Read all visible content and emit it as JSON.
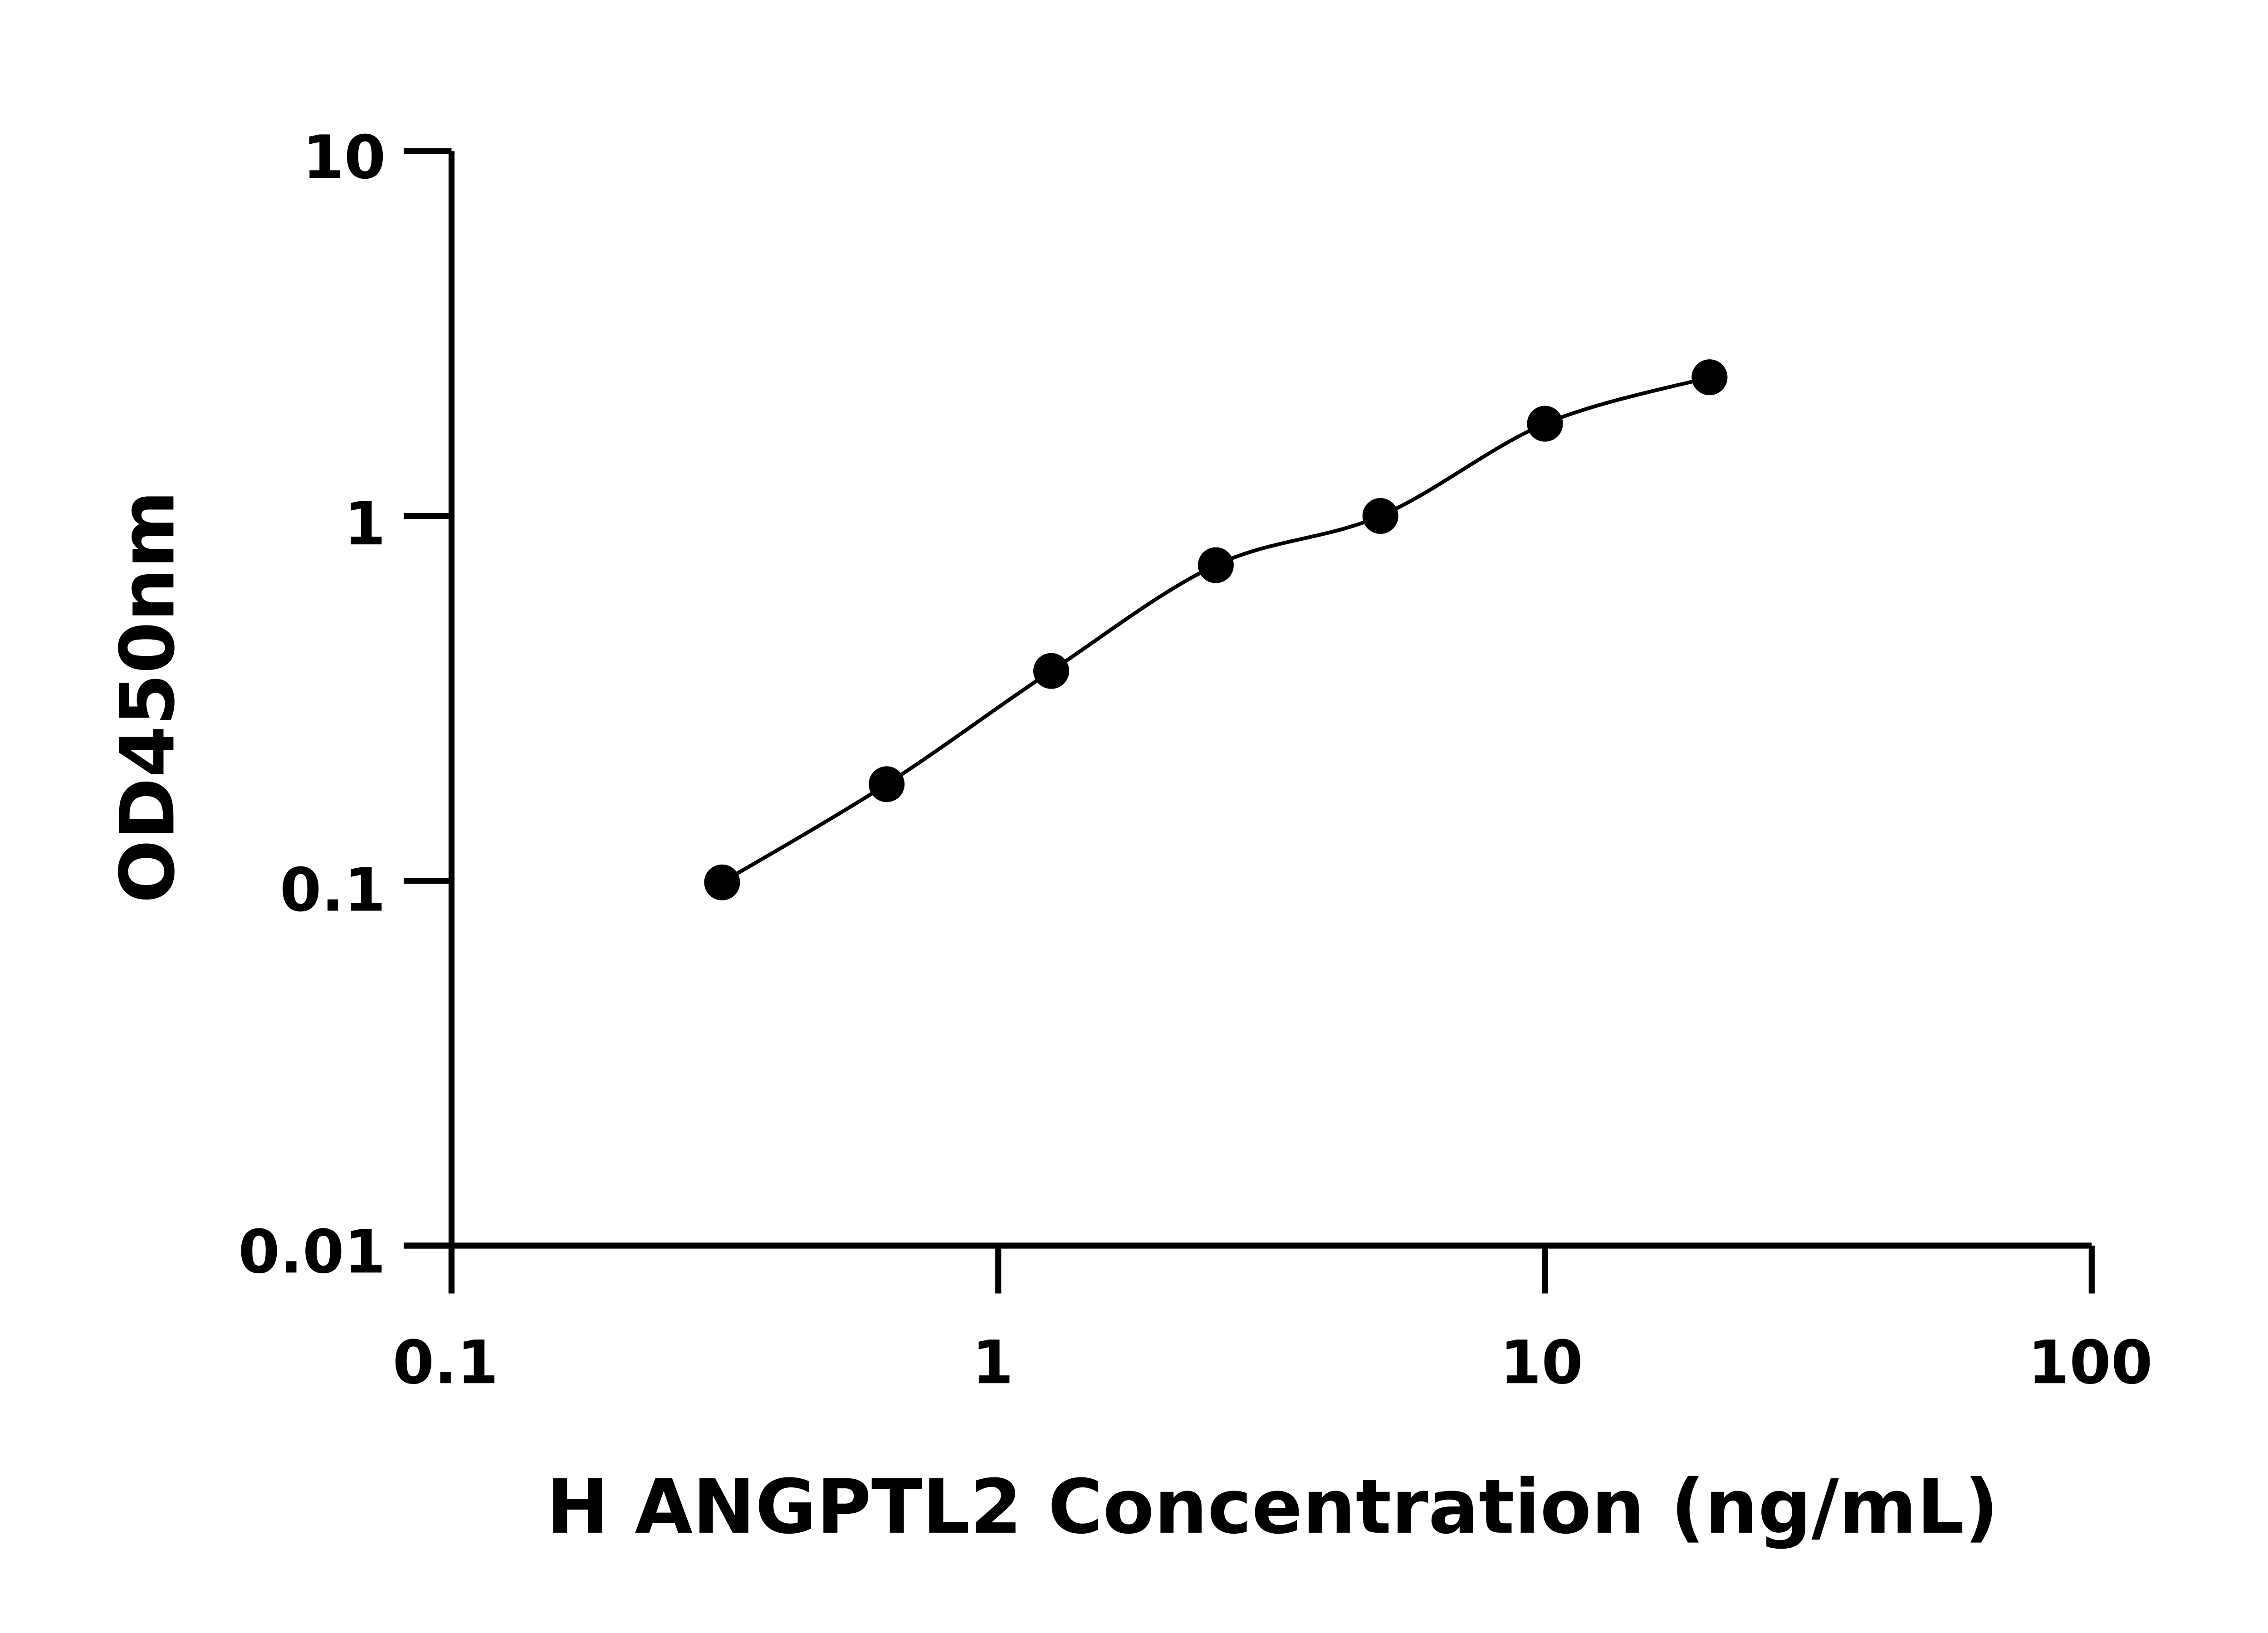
{
  "chart_data": {
    "type": "scatter",
    "title": "",
    "xlabel": "H ANGPTL2 Concentration (ng/mL)",
    "ylabel": "OD450nm",
    "xscale": "log",
    "yscale": "log",
    "xlim": [
      0.1,
      100
    ],
    "ylim": [
      0.01,
      10
    ],
    "xticks": [
      "0.1",
      "1",
      "10",
      "100"
    ],
    "yticks": [
      "0.01",
      "0.1",
      "1",
      "10"
    ],
    "grid": false,
    "fit_curve": true,
    "color": "#000000",
    "x": [
      0.3125,
      0.625,
      1.25,
      2.5,
      5,
      10,
      20
    ],
    "y": [
      0.099,
      0.184,
      0.376,
      0.733,
      1.0,
      1.79,
      2.4
    ]
  }
}
